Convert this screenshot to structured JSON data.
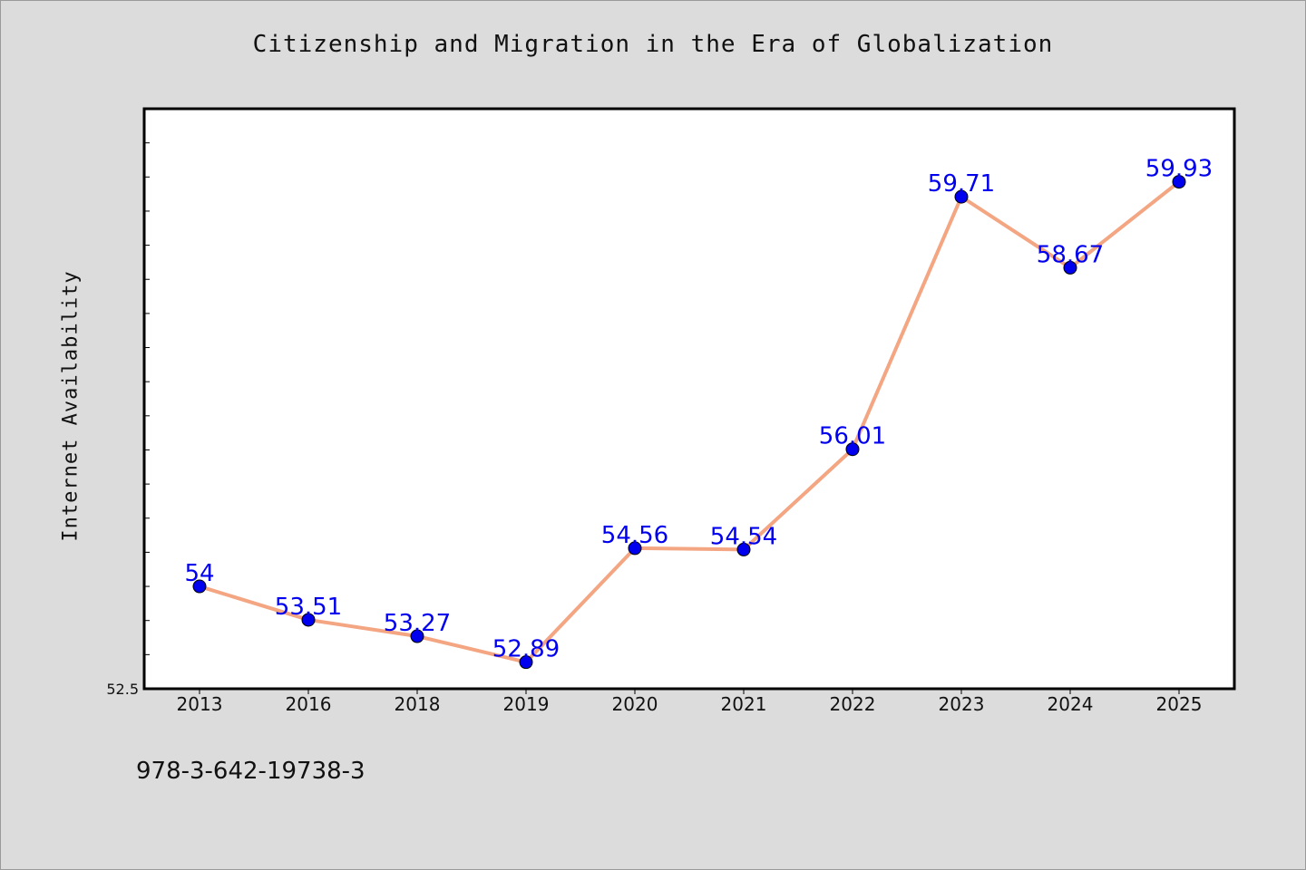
{
  "chart_data": {
    "type": "line",
    "title": "Citizenship and Migration in the Era of Globalization",
    "xlabel": "",
    "ylabel": "Internet Availability",
    "categories": [
      "2013",
      "2016",
      "2018",
      "2019",
      "2020",
      "2021",
      "2022",
      "2023",
      "2024",
      "2025"
    ],
    "series": [
      {
        "values": [
          54,
          53.51,
          53.27,
          52.89,
          54.56,
          54.54,
          56.01,
          59.71,
          58.67,
          59.93
        ]
      }
    ],
    "data_labels": [
      "54",
      "53.51",
      "53.27",
      "52.89",
      "54.56",
      "54.54",
      "56.01",
      "59.71",
      "58.67",
      "59.93"
    ],
    "ylim": [
      52.5,
      61.0
    ],
    "y_tick_labels": [
      "52.5"
    ],
    "grid": false,
    "legend": "none",
    "line_color": "#f4a582",
    "marker_color": "#0000ee"
  },
  "footer": {
    "isbn": "978-3-642-19738-3"
  }
}
